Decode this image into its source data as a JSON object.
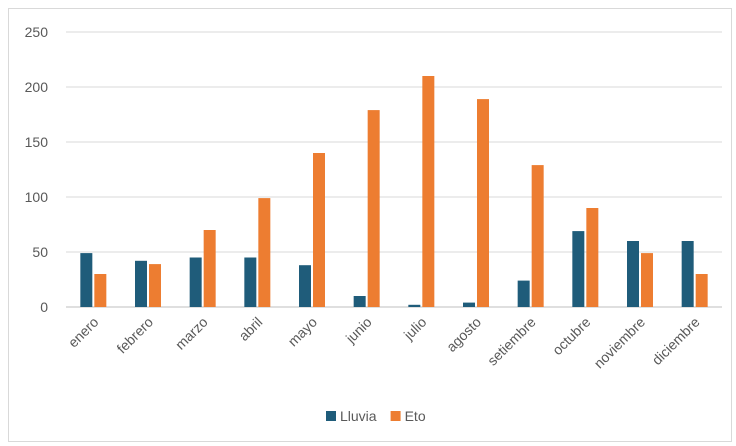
{
  "chart_data": {
    "type": "bar",
    "categories": [
      "enero",
      "febrero",
      "marzo",
      "abril",
      "mayo",
      "junio",
      "julio",
      "agosto",
      "setiembre",
      "octubre",
      "noviembre",
      "diciembre"
    ],
    "series": [
      {
        "name": "Lluvia",
        "color": "#1f5c7a",
        "values": [
          49,
          42,
          45,
          45,
          38,
          10,
          2,
          4,
          24,
          69,
          60,
          60
        ]
      },
      {
        "name": "Eto",
        "color": "#ed7d31",
        "values": [
          30,
          39,
          70,
          99,
          140,
          179,
          210,
          189,
          129,
          90,
          49,
          30
        ]
      }
    ],
    "yticks": [
      "0",
      "50",
      "100",
      "150",
      "200",
      "250"
    ],
    "ylim": [
      0,
      250
    ],
    "grid": true,
    "legend": "bottom"
  }
}
